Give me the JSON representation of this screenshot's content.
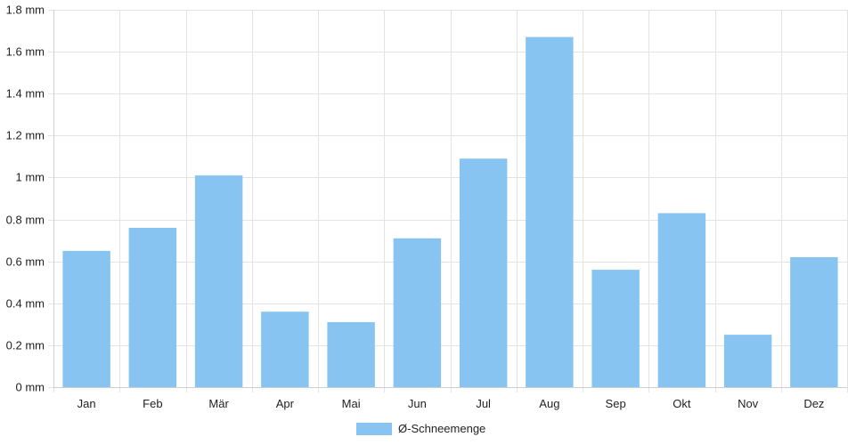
{
  "chart_data": {
    "type": "bar",
    "categories": [
      "Jan",
      "Feb",
      "Mär",
      "Apr",
      "Mai",
      "Jun",
      "Jul",
      "Aug",
      "Sep",
      "Okt",
      "Nov",
      "Dez"
    ],
    "series": [
      {
        "name": "Ø-Schneemenge",
        "color": "#88c4f1",
        "values": [
          0.65,
          0.76,
          1.01,
          0.36,
          0.31,
          0.71,
          1.09,
          1.67,
          0.56,
          0.83,
          0.25,
          0.62
        ]
      }
    ],
    "yunit": "mm",
    "ylim": [
      0,
      1.8
    ],
    "yticks": [
      0,
      0.2,
      0.4,
      0.6,
      0.8,
      1,
      1.2,
      1.4,
      1.6,
      1.8
    ],
    "ytick_labels": [
      "0 mm",
      "0.2 mm",
      "0.4 mm",
      "0.6 mm",
      "0.8 mm",
      "1 mm",
      "1.2 mm",
      "1.4 mm",
      "1.6 mm",
      "1.8 mm"
    ],
    "grid": true,
    "legend_position": "bottom-center"
  }
}
